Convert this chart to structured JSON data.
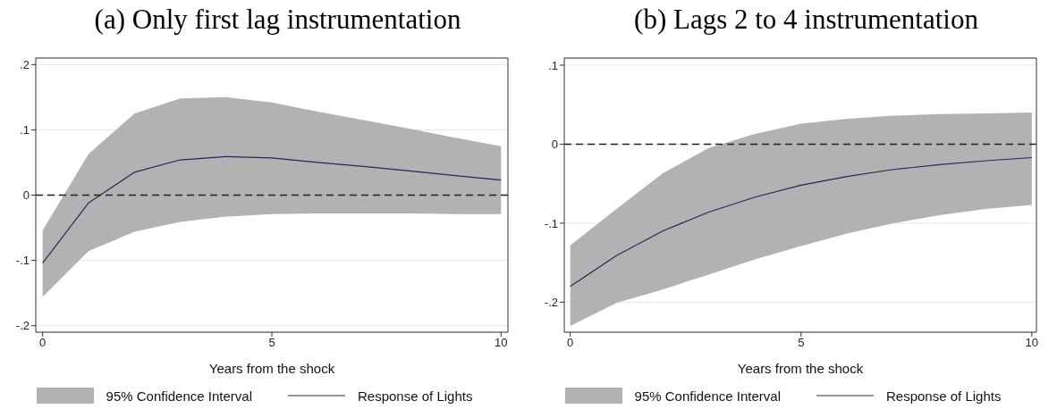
{
  "chart_data": [
    {
      "type": "line",
      "title": "(a) Only first lag instrumentation",
      "xlabel": "Years from the shock",
      "x": [
        0,
        1,
        2,
        3,
        4,
        5,
        6,
        7,
        8,
        9,
        10
      ],
      "xlim": [
        -0.15,
        10.15
      ],
      "xticks": [
        0,
        5,
        10
      ],
      "ylim": [
        -0.21,
        0.21
      ],
      "yticks": [
        {
          "value": -0.2,
          "label": "-.2"
        },
        {
          "value": -0.1,
          "label": "-.1"
        },
        0,
        {
          "value": 0.1,
          "label": ".1"
        },
        {
          "value": 0.2,
          "label": ".2"
        }
      ],
      "grid": "y",
      "legend": "bottom",
      "annotations": [
        "95% Confidence Interval"
      ],
      "ref_lines": [
        {
          "axis": "y",
          "value": 0,
          "color": "#222222",
          "line_style": "dashed"
        }
      ],
      "series": [
        {
          "name": "Response of Lights",
          "type": "line",
          "color": "#1f2a5a",
          "values": [
            -0.104,
            -0.012,
            0.035,
            0.054,
            0.059,
            0.057,
            0.05,
            0.044,
            0.037,
            0.03,
            0.023
          ],
          "lower": [
            -0.156,
            -0.086,
            -0.056,
            -0.041,
            -0.033,
            -0.029,
            -0.028,
            -0.028,
            -0.028,
            -0.029,
            -0.029
          ],
          "upper": [
            -0.054,
            0.063,
            0.125,
            0.148,
            0.15,
            0.142,
            0.128,
            0.115,
            0.102,
            0.088,
            0.075
          ]
        }
      ]
    },
    {
      "type": "line",
      "title": "(b) Lags 2 to 4 instrumentation",
      "xlabel": "Years from the shock",
      "x": [
        0,
        1,
        2,
        3,
        4,
        5,
        6,
        7,
        8,
        9,
        10
      ],
      "xlim": [
        -0.13,
        10.1
      ],
      "xticks": [
        0,
        5,
        10
      ],
      "ylim": [
        -0.238,
        0.109
      ],
      "yticks": [
        {
          "value": -0.2,
          "label": "-.2"
        },
        {
          "value": -0.1,
          "label": "-.1"
        },
        0,
        {
          "value": 0.1,
          "label": ".1"
        }
      ],
      "grid": "y",
      "legend": "bottom",
      "annotations": [
        "95% Confidence Interval"
      ],
      "ref_lines": [
        {
          "axis": "y",
          "value": 0,
          "color": "#222222",
          "line_style": "dashed"
        }
      ],
      "series": [
        {
          "name": "Response of Lights",
          "type": "line",
          "color": "#1f2a5a",
          "values": [
            -0.18,
            -0.141,
            -0.11,
            -0.086,
            -0.067,
            -0.052,
            -0.041,
            -0.032,
            -0.026,
            -0.021,
            -0.017
          ],
          "lower": [
            -0.23,
            -0.201,
            -0.184,
            -0.165,
            -0.146,
            -0.129,
            -0.113,
            -0.1,
            -0.09,
            -0.082,
            -0.077
          ],
          "upper": [
            -0.128,
            -0.082,
            -0.037,
            -0.005,
            0.013,
            0.026,
            0.032,
            0.036,
            0.038,
            0.039,
            0.04
          ]
        }
      ]
    }
  ]
}
